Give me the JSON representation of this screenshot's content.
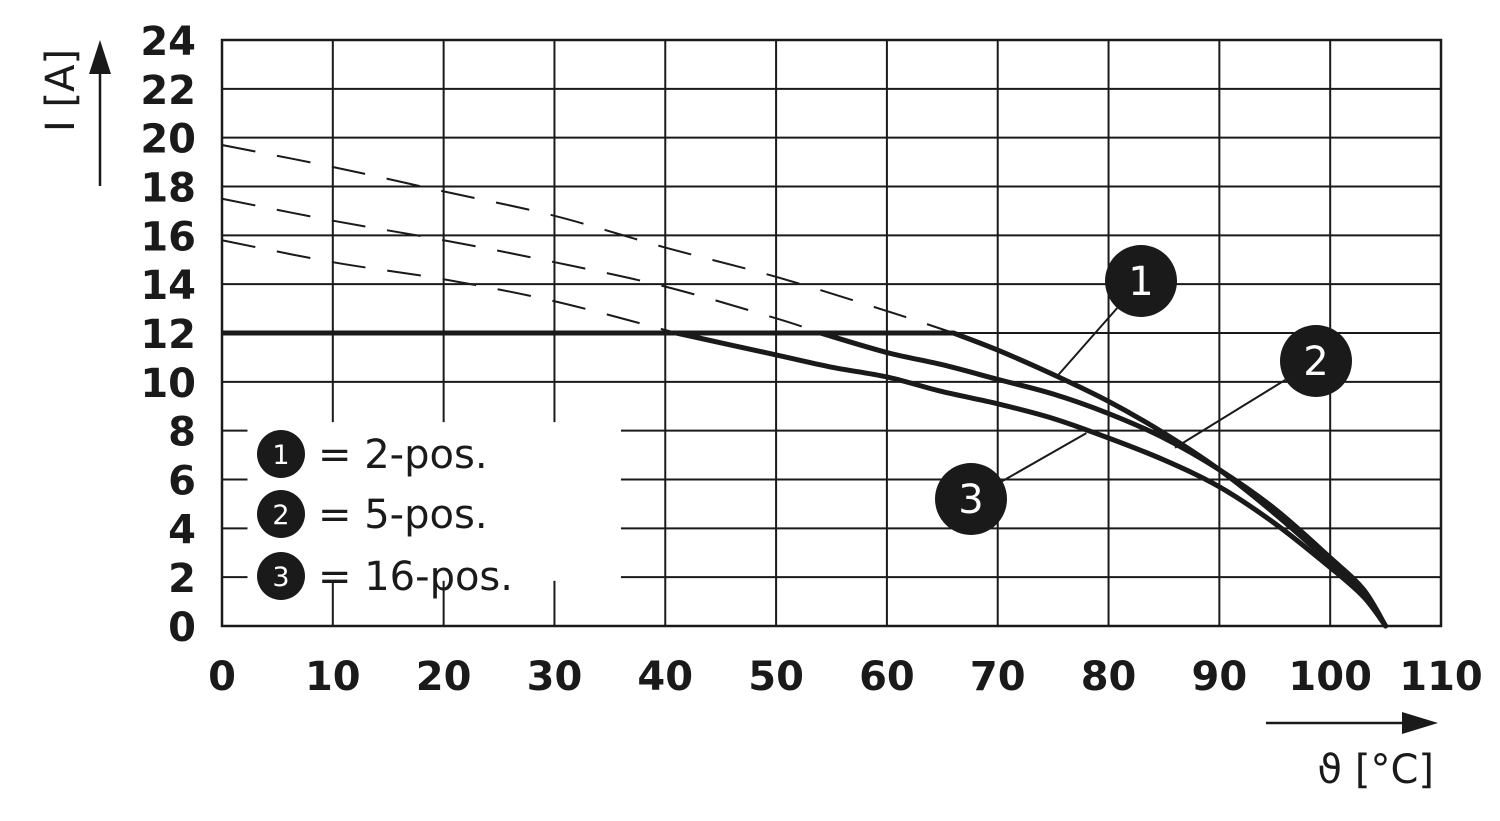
{
  "chart_data": {
    "type": "line",
    "title": "",
    "xlabel": "ϑ [°C]",
    "ylabel": "I [A]",
    "xlim": [
      0,
      110
    ],
    "ylim": [
      0,
      24
    ],
    "x_ticks": [
      "0",
      "10",
      "20",
      "30",
      "40",
      "50",
      "60",
      "70",
      "80",
      "90",
      "100",
      "110"
    ],
    "y_ticks": [
      "0",
      "2",
      "4",
      "6",
      "8",
      "10",
      "12",
      "14",
      "16",
      "18",
      "20",
      "22",
      "24"
    ],
    "grid": true,
    "colors": {
      "line": "#1a1a1a",
      "badge": "#1a1a1a",
      "background": "#ffffff"
    },
    "legend": {
      "placement": "bottom-left",
      "entries": [
        {
          "badge": "1",
          "label": "= 2-pos."
        },
        {
          "badge": "2",
          "label": "= 5-pos."
        },
        {
          "badge": "3",
          "label": "= 16-pos."
        }
      ]
    },
    "limit_line": {
      "value": 12,
      "x": [
        0,
        66
      ]
    },
    "series": [
      {
        "badge": "1",
        "derating": {
          "x": [
            66,
            70,
            75,
            80,
            85,
            90,
            95,
            100,
            103,
            105
          ],
          "y": [
            12,
            11.3,
            10.3,
            9.2,
            7.9,
            6.4,
            4.6,
            2.6,
            1.3,
            0
          ]
        },
        "extrapolation": {
          "x": [
            0,
            10,
            20,
            30,
            40,
            50,
            60,
            66
          ],
          "y": [
            19.7,
            18.8,
            17.8,
            16.8,
            15.5,
            14.3,
            12.9,
            12
          ]
        }
      },
      {
        "badge": "2",
        "derating": {
          "x": [
            54,
            60,
            65,
            70,
            75,
            80,
            85,
            90,
            95,
            100,
            103,
            105
          ],
          "y": [
            12,
            11.2,
            10.7,
            10.1,
            9.5,
            8.7,
            7.7,
            6.4,
            4.8,
            2.8,
            1.5,
            0
          ]
        },
        "extrapolation": {
          "x": [
            0,
            10,
            20,
            30,
            40,
            50,
            54
          ],
          "y": [
            17.5,
            16.6,
            15.8,
            14.9,
            13.9,
            12.6,
            12
          ]
        }
      },
      {
        "badge": "3",
        "derating": {
          "x": [
            41,
            50,
            55,
            60,
            65,
            70,
            75,
            80,
            85,
            90,
            95,
            100,
            103,
            105
          ],
          "y": [
            12,
            11.1,
            10.6,
            10.2,
            9.6,
            9.1,
            8.5,
            7.7,
            6.8,
            5.7,
            4.2,
            2.4,
            1.2,
            0
          ]
        },
        "extrapolation": {
          "x": [
            0,
            10,
            20,
            30,
            41
          ],
          "y": [
            15.8,
            14.9,
            14.2,
            13.3,
            12
          ]
        }
      }
    ],
    "callouts": [
      {
        "badge": "1",
        "target": {
          "x": 75.5,
          "y": 10.3
        }
      },
      {
        "badge": "2",
        "target": {
          "x": 86,
          "y": 7.3
        }
      },
      {
        "badge": "3",
        "target": {
          "x": 78,
          "y": 7.9
        }
      }
    ]
  }
}
